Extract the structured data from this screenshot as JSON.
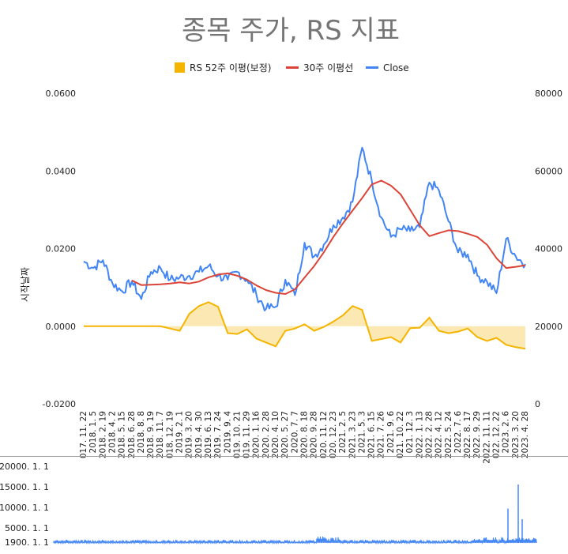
{
  "chart_data": [
    {
      "type": "line",
      "title": "종목 주가, RS 지표",
      "ylabel_left": "시작날짜",
      "ylim_left": [
        -0.02,
        0.06
      ],
      "yticks_left": [
        "0.0600",
        "0.0400",
        "0.0200",
        "0.0000",
        "-0.0200"
      ],
      "ylim_right": [
        0,
        80000
      ],
      "yticks_right": [
        "80000",
        "60000",
        "40000",
        "20000",
        "0"
      ],
      "legend_position": "top",
      "x": [
        "017. 11. 22",
        "2018. 1. 5",
        "2018. 2. 19",
        "2018. 4. 2",
        "2018. 5. 15",
        "2018. 6. 28",
        "2018. 8. 8",
        "2018. 9. 19",
        "2018. 11. 7",
        "018. 12. 19",
        "2019. 2. 1",
        "2019. 3. 20",
        "2019. 4. 30",
        "2019. 6. 13",
        "2019. 7. 24",
        "2019. 9. 4",
        "019. 10. 21",
        "019. 11. 29",
        "2020. 1. 16",
        "2020. 2. 28",
        "2020. 4. 10",
        "2020. 5. 27",
        "2020. 7. 7",
        "2020. 8. 18",
        "2020. 9. 28",
        "020. 11. 12",
        "020. 12. 23",
        "2021. 2. 5",
        "2021. 3. 23",
        "2021. 5. 3",
        "2021. 6. 15",
        "2021. 7. 26",
        "2021. 9. 6",
        "021. 10. 22",
        "021. 12. 3",
        "2022. 1. 13",
        "2022. 2. 28",
        "2022. 4. 12",
        "2022. 5. 24",
        "2022. 7. 6",
        "2022. 8. 17",
        "2022. 9. 29",
        "2022. 11. 11",
        "022. 12. 22",
        "2023. 2. 6",
        "2023. 3. 20",
        "2023. 4. 28"
      ],
      "series": [
        {
          "name": "RS 52주 이평(보정)",
          "axis": "left",
          "color": "#f4b400",
          "style": "area",
          "values": [
            0,
            0,
            0,
            0,
            0,
            0,
            0,
            0,
            0,
            -0.0006,
            -0.0012,
            0.0032,
            0.0052,
            0.0062,
            0.005,
            -0.0018,
            -0.002,
            -0.0008,
            -0.0032,
            -0.0042,
            -0.0052,
            -0.0012,
            -0.0006,
            0.0005,
            -0.0012,
            -0.0002,
            0.0012,
            0.0028,
            0.0052,
            0.0042,
            -0.0038,
            -0.0033,
            -0.0028,
            -0.0042,
            -0.0005,
            -0.0004,
            0.0022,
            -0.0012,
            -0.0018,
            -0.0014,
            -0.0006,
            -0.0028,
            -0.0038,
            -0.003,
            -0.0048,
            -0.0054,
            -0.0058
          ]
        },
        {
          "name": "30주 이평선",
          "axis": "right",
          "color": "#db4437",
          "style": "line",
          "values": [
            null,
            null,
            null,
            null,
            null,
            31800,
            30600,
            30700,
            30800,
            31000,
            31300,
            31000,
            31500,
            32600,
            33300,
            33600,
            33000,
            32000,
            30500,
            29300,
            28600,
            28300,
            29500,
            32500,
            35500,
            39000,
            43000,
            46500,
            49800,
            53000,
            56500,
            57500,
            56200,
            54000,
            50000,
            46000,
            43200,
            44000,
            44700,
            44500,
            43800,
            43000,
            41000,
            37500,
            35000,
            35300,
            35700
          ]
        },
        {
          "name": "Close",
          "axis": "right",
          "color": "#4285f4",
          "style": "line",
          "values": [
            36700,
            35000,
            37000,
            31000,
            29000,
            31500,
            27000,
            34000,
            35000,
            32000,
            32500,
            33000,
            34000,
            35500,
            33000,
            32000,
            34000,
            32000,
            28000,
            24500,
            25000,
            32000,
            28000,
            41500,
            38000,
            41000,
            46000,
            48000,
            52000,
            66000,
            57500,
            48000,
            43000,
            45000,
            44500,
            45500,
            57000,
            55000,
            47000,
            39000,
            38500,
            33000,
            31500,
            28500,
            42500,
            38000,
            36000
          ]
        }
      ]
    },
    {
      "type": "bar",
      "title": "",
      "yticks": [
        "20000. 1. 1",
        "15000. 1. 1",
        "10000. 1. 1",
        "5000. 1. 1",
        "1900. 1. 1"
      ],
      "ylim": [
        1900,
        20000
      ],
      "series": [
        {
          "name": "",
          "color": "#4285f4",
          "spikes": [
            {
              "x": "2023. 2. 6",
              "value": 10000
            },
            {
              "x": "2023. 3. 20",
              "value": 15700
            },
            {
              "x": "2023. 4. 28",
              "value": 7500
            }
          ]
        }
      ]
    }
  ]
}
